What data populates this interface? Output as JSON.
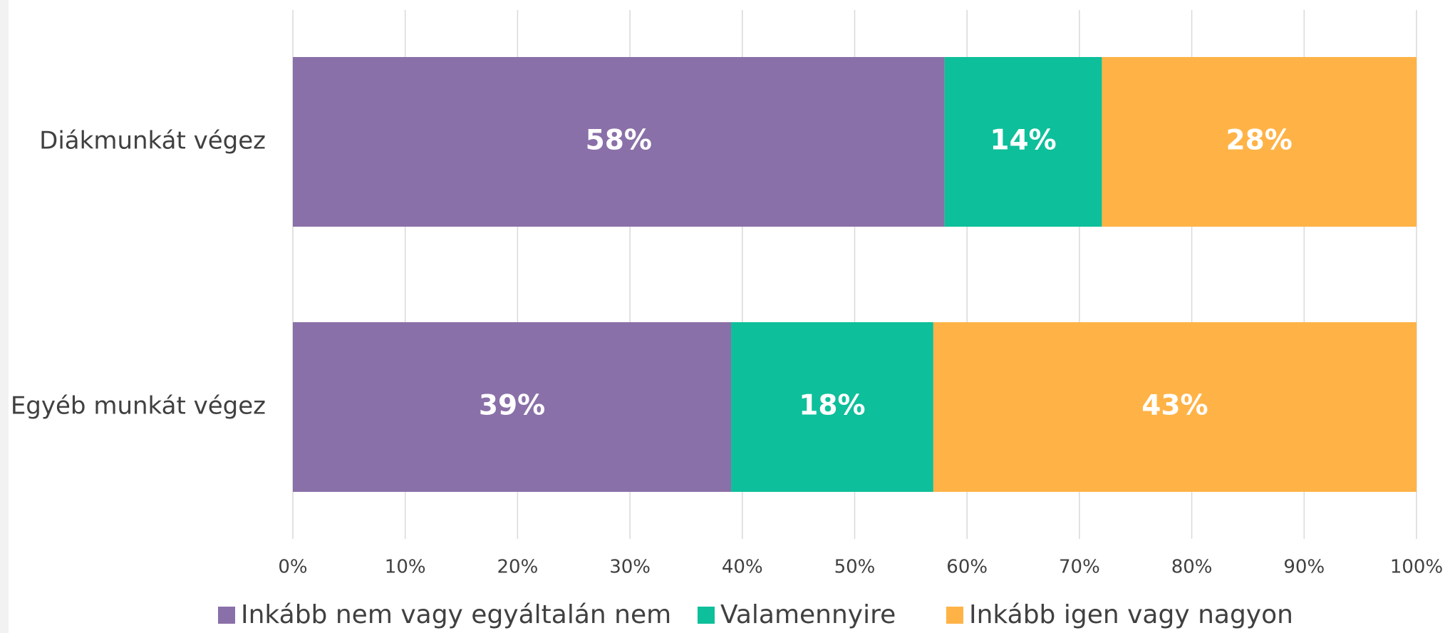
{
  "chart_data": {
    "type": "stacked-bar-horizontal",
    "categories": [
      "Diákmunkát végez",
      "Egyéb munkát végez"
    ],
    "series": [
      {
        "name": "Inkább nem vagy egyáltalán nem",
        "color": "#8a70a8",
        "values": [
          58,
          39
        ],
        "value_labels": [
          "58%",
          "39%"
        ]
      },
      {
        "name": "Valamennyire",
        "color": "#0dbf9a",
        "values": [
          14,
          18
        ],
        "value_labels": [
          "14%",
          "18%"
        ]
      },
      {
        "name": "Inkább igen vagy nagyon",
        "color": "#ffb347",
        "values": [
          28,
          43
        ],
        "value_labels": [
          "28%",
          "43%"
        ]
      }
    ],
    "xlim": [
      0,
      100
    ],
    "xticks": [
      {
        "value": 0,
        "label": "0%"
      },
      {
        "value": 10,
        "label": "10%"
      },
      {
        "value": 20,
        "label": "20%"
      },
      {
        "value": 30,
        "label": "30%"
      },
      {
        "value": 40,
        "label": "40%"
      },
      {
        "value": 50,
        "label": "50%"
      },
      {
        "value": 60,
        "label": "60%"
      },
      {
        "value": 70,
        "label": "70%"
      },
      {
        "value": 80,
        "label": "80%"
      },
      {
        "value": 90,
        "label": "90%"
      },
      {
        "value": 100,
        "label": "100%"
      }
    ],
    "grid": true,
    "legend": "bottom"
  }
}
